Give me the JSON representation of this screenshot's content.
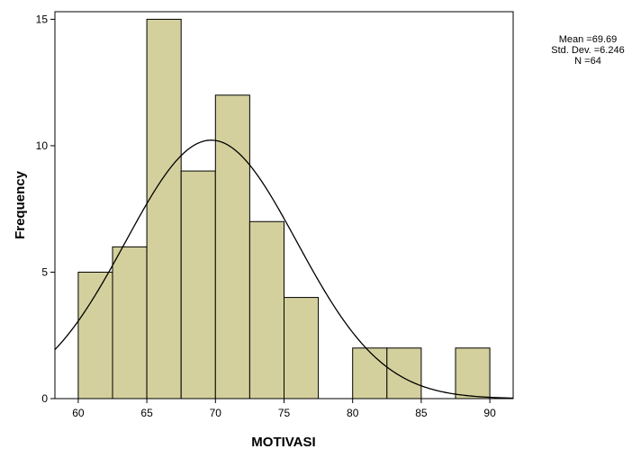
{
  "chart_data": {
    "type": "bar",
    "subtype": "histogram",
    "title": "",
    "xlabel": "MOTIVASI",
    "ylabel": "Frequency",
    "xlim": [
      58.3,
      91.7
    ],
    "ylim": [
      0,
      15.3
    ],
    "x_ticks": [
      "60",
      "65",
      "70",
      "75",
      "80",
      "85",
      "90"
    ],
    "y_ticks": [
      "0",
      "5",
      "10",
      "15"
    ],
    "bin_width": 2.5,
    "bins": [
      {
        "start": 60.0,
        "end": 62.5,
        "count": 5
      },
      {
        "start": 62.5,
        "end": 65.0,
        "count": 6
      },
      {
        "start": 65.0,
        "end": 67.5,
        "count": 15
      },
      {
        "start": 67.5,
        "end": 70.0,
        "count": 9
      },
      {
        "start": 70.0,
        "end": 72.5,
        "count": 12
      },
      {
        "start": 72.5,
        "end": 75.0,
        "count": 7
      },
      {
        "start": 75.0,
        "end": 77.5,
        "count": 4
      },
      {
        "start": 80.0,
        "end": 82.5,
        "count": 2
      },
      {
        "start": 82.5,
        "end": 85.0,
        "count": 2
      },
      {
        "start": 87.5,
        "end": 90.0,
        "count": 2
      }
    ],
    "normal_curve": {
      "mean": 69.69,
      "std_dev": 6.246,
      "n": 64
    },
    "bar_color": "#d4d09d",
    "grid": false,
    "legend": "none"
  },
  "stats_box": {
    "mean_text": "Mean =69.69",
    "std_text": "Std. Dev. =6.246",
    "n_text": "N =64"
  }
}
